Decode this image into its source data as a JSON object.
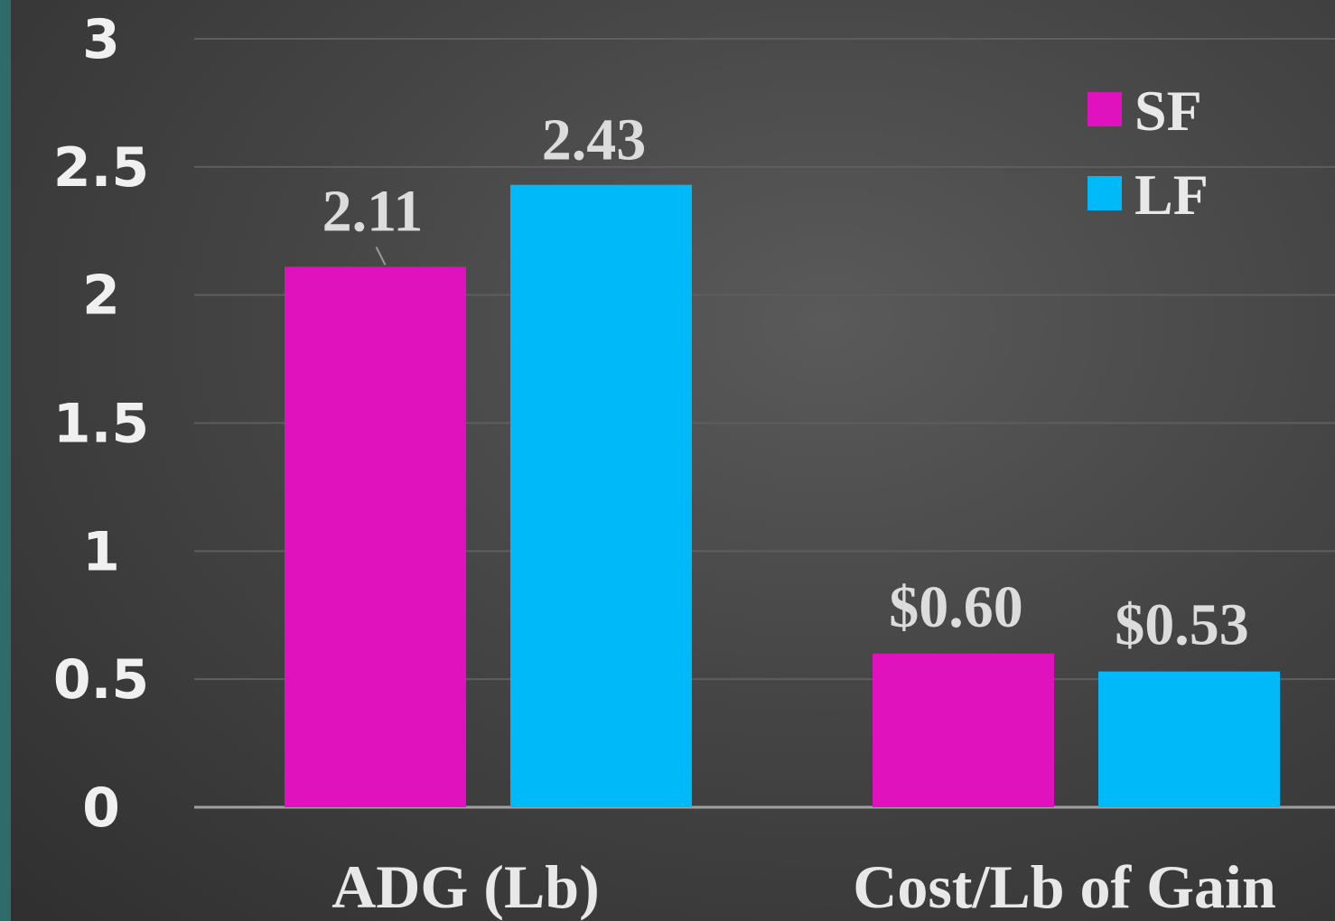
{
  "chart_data": {
    "type": "bar",
    "categories": [
      "ADG (Lb)",
      "Cost/Lb of Gain"
    ],
    "series": [
      {
        "name": "SF",
        "values": [
          2.11,
          0.6
        ],
        "labels": [
          "2.11",
          "$0.60"
        ],
        "color": "#e012bd"
      },
      {
        "name": "LF",
        "values": [
          2.43,
          0.53
        ],
        "labels": [
          "2.43",
          "$0.53"
        ],
        "color": "#00b9f8"
      }
    ],
    "ylim": [
      0,
      3
    ],
    "yticks": [
      "0",
      "0.5",
      "1",
      "1.5",
      "2",
      "2.5",
      "3"
    ],
    "grid": true,
    "legend": "top-right"
  },
  "colors": {
    "background": "#454545",
    "accent_strip": "#2f6b68",
    "gridline": "#5e5e5e",
    "axis": "#a0a0a0"
  }
}
